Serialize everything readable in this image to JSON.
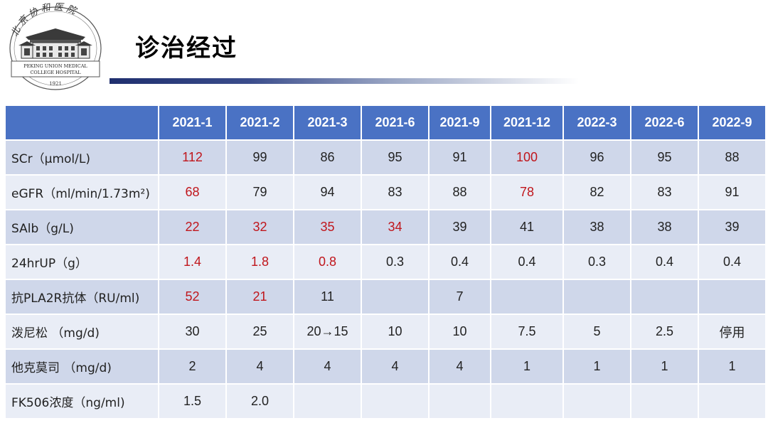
{
  "slide": {
    "title": "诊治经过"
  },
  "logo": {
    "arc_text": "北 京 协 和 医 院",
    "line1": "PEKING UNION MEDICAL",
    "line2": "COLLEGE HOSPITAL",
    "year": "1921"
  },
  "colors": {
    "header_bg": "#4a72c4",
    "row_odd": "#cfd7ea",
    "row_even": "#e9edf6",
    "highlight": "#c0161c"
  },
  "table": {
    "corner": "",
    "columns": [
      "2021-1",
      "2021-2",
      "2021-3",
      "2021-6",
      "2021-9",
      "2021-12",
      "2022-3",
      "2022-6",
      "2022-9"
    ],
    "rows": [
      {
        "label": "SCr（μmol/L)",
        "cells": [
          {
            "v": "112",
            "hi": true
          },
          {
            "v": "99",
            "hi": false
          },
          {
            "v": "86",
            "hi": false
          },
          {
            "v": "95",
            "hi": false
          },
          {
            "v": "91",
            "hi": false
          },
          {
            "v": "100",
            "hi": true
          },
          {
            "v": "96",
            "hi": false
          },
          {
            "v": "95",
            "hi": false
          },
          {
            "v": "88",
            "hi": false
          }
        ]
      },
      {
        "label": "eGFR（ml/min/1.73m²)",
        "cells": [
          {
            "v": "68",
            "hi": true
          },
          {
            "v": "79",
            "hi": false
          },
          {
            "v": "94",
            "hi": false
          },
          {
            "v": "83",
            "hi": false
          },
          {
            "v": "88",
            "hi": false
          },
          {
            "v": "78",
            "hi": true
          },
          {
            "v": "82",
            "hi": false
          },
          {
            "v": "83",
            "hi": false
          },
          {
            "v": "91",
            "hi": false
          }
        ]
      },
      {
        "label": "SAlb（g/L)",
        "cells": [
          {
            "v": "22",
            "hi": true
          },
          {
            "v": "32",
            "hi": true
          },
          {
            "v": "35",
            "hi": true
          },
          {
            "v": "34",
            "hi": true
          },
          {
            "v": "39",
            "hi": false
          },
          {
            "v": "41",
            "hi": false
          },
          {
            "v": "38",
            "hi": false
          },
          {
            "v": "38",
            "hi": false
          },
          {
            "v": "39",
            "hi": false
          }
        ]
      },
      {
        "label": "24hrUP（g）",
        "cells": [
          {
            "v": "1.4",
            "hi": true
          },
          {
            "v": "1.8",
            "hi": true
          },
          {
            "v": "0.8",
            "hi": true
          },
          {
            "v": "0.3",
            "hi": false
          },
          {
            "v": "0.4",
            "hi": false
          },
          {
            "v": "0.4",
            "hi": false
          },
          {
            "v": "0.3",
            "hi": false
          },
          {
            "v": "0.4",
            "hi": false
          },
          {
            "v": "0.4",
            "hi": false
          }
        ]
      },
      {
        "label": "抗PLA2R抗体（RU/ml)",
        "cells": [
          {
            "v": "52",
            "hi": true
          },
          {
            "v": "21",
            "hi": true
          },
          {
            "v": "11",
            "hi": false
          },
          {
            "v": "",
            "hi": false
          },
          {
            "v": "7",
            "hi": false
          },
          {
            "v": "",
            "hi": false
          },
          {
            "v": "",
            "hi": false
          },
          {
            "v": "",
            "hi": false
          },
          {
            "v": "",
            "hi": false
          }
        ]
      },
      {
        "label": "泼尼松 （mg/d)",
        "cells": [
          {
            "v": "30",
            "hi": false
          },
          {
            "v": "25",
            "hi": false
          },
          {
            "v": "20→15",
            "hi": false
          },
          {
            "v": "10",
            "hi": false
          },
          {
            "v": "10",
            "hi": false
          },
          {
            "v": "7.5",
            "hi": false
          },
          {
            "v": "5",
            "hi": false
          },
          {
            "v": "2.5",
            "hi": false
          },
          {
            "v": "停用",
            "hi": false
          }
        ]
      },
      {
        "label": "他克莫司 （mg/d)",
        "cells": [
          {
            "v": "2",
            "hi": false
          },
          {
            "v": "4",
            "hi": false
          },
          {
            "v": "4",
            "hi": false
          },
          {
            "v": "4",
            "hi": false
          },
          {
            "v": "4",
            "hi": false
          },
          {
            "v": "1",
            "hi": false
          },
          {
            "v": "1",
            "hi": false
          },
          {
            "v": "1",
            "hi": false
          },
          {
            "v": "1",
            "hi": false
          }
        ]
      },
      {
        "label": "FK506浓度（ng/ml)",
        "cells": [
          {
            "v": "1.5",
            "hi": false
          },
          {
            "v": "2.0",
            "hi": false
          },
          {
            "v": "",
            "hi": false
          },
          {
            "v": "",
            "hi": false
          },
          {
            "v": "",
            "hi": false
          },
          {
            "v": "",
            "hi": false
          },
          {
            "v": "",
            "hi": false
          },
          {
            "v": "",
            "hi": false
          },
          {
            "v": "",
            "hi": false
          }
        ]
      }
    ]
  }
}
